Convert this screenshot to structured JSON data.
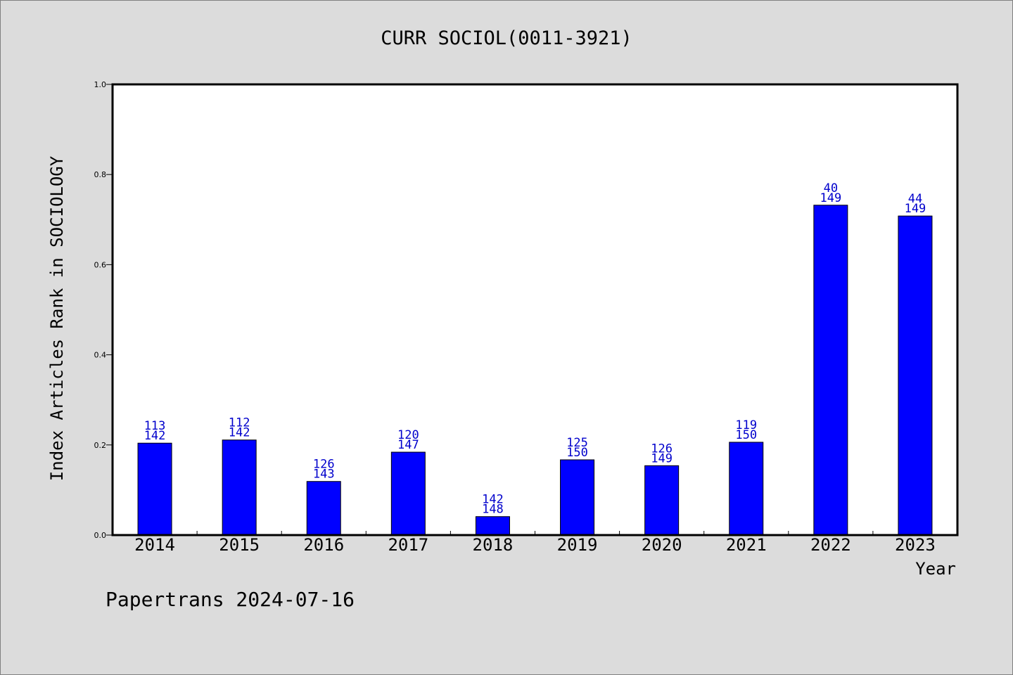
{
  "chart_data": {
    "type": "bar",
    "title": "CURR SOCIOL(0011-3921)",
    "xlabel": "Year",
    "ylabel": "Index Articles Rank in SOCIOLOGY",
    "ylim": [
      0,
      1.0
    ],
    "yticks": [
      "0.0",
      "0.2",
      "0.4",
      "0.6",
      "0.8",
      "1.0"
    ],
    "categories": [
      "2014",
      "2015",
      "2016",
      "2017",
      "2018",
      "2019",
      "2020",
      "2021",
      "2022",
      "2023"
    ],
    "values": [
      0.204,
      0.211,
      0.119,
      0.184,
      0.041,
      0.167,
      0.154,
      0.206,
      0.732,
      0.708
    ],
    "labels_top": [
      "113",
      "112",
      "126",
      "120",
      "142",
      "125",
      "126",
      "119",
      "40",
      "44"
    ],
    "labels_bottom": [
      "142",
      "142",
      "143",
      "147",
      "148",
      "150",
      "149",
      "150",
      "149",
      "149"
    ],
    "grid": false,
    "bar_color": "#0000ff",
    "label_color": "#0000cc"
  },
  "footer": {
    "text": "Papertrans 2024-07-16"
  }
}
